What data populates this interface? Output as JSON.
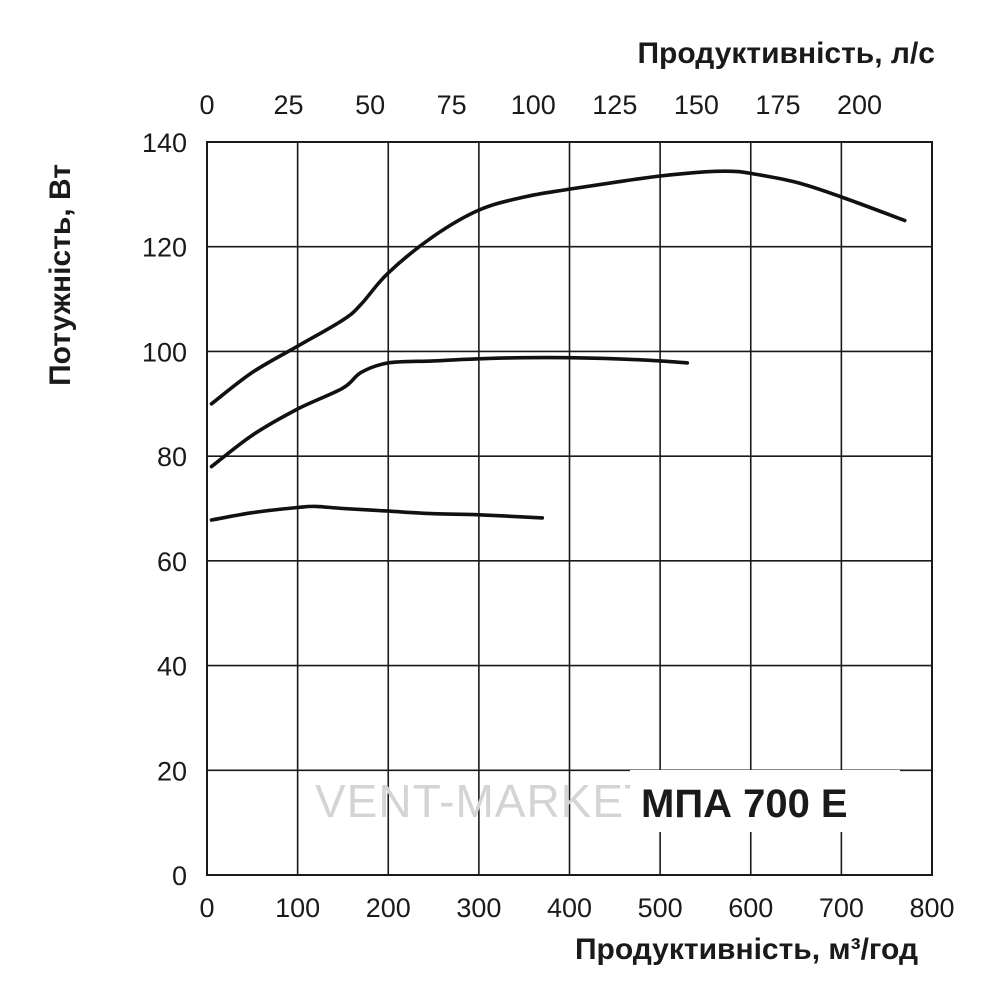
{
  "chart_data": {
    "type": "line",
    "title": "",
    "ylabel": "Потужність, Вт",
    "xlabel_bottom": "Продуктивність, м³/год",
    "xlabel_top": "Продуктивність, л/с",
    "xlim": [
      0,
      800
    ],
    "ylim": [
      0,
      140
    ],
    "x_ticks": [
      0,
      100,
      200,
      300,
      400,
      500,
      600,
      700,
      800
    ],
    "y_ticks": [
      0,
      20,
      40,
      60,
      80,
      100,
      120,
      140
    ],
    "top_ticks": [
      0,
      25,
      50,
      75,
      100,
      125,
      150,
      175,
      200
    ],
    "grid": true,
    "model_label": "МПА 700 Е",
    "watermark": "VENT-MARKET",
    "series": [
      {
        "x": [
          5,
          50,
          100,
          150,
          170,
          200,
          250,
          300,
          350,
          400,
          450,
          500,
          550,
          580,
          600,
          650,
          700,
          770
        ],
        "y": [
          90,
          96,
          101,
          106,
          109,
          115,
          122,
          127,
          129.5,
          131,
          132.3,
          133.5,
          134.3,
          134.4,
          134,
          132.3,
          129.5,
          125
        ]
      },
      {
        "x": [
          5,
          50,
          100,
          150,
          170,
          200,
          250,
          300,
          350,
          400,
          450,
          500,
          530
        ],
        "y": [
          78,
          84,
          89,
          93,
          96,
          97.8,
          98.2,
          98.6,
          98.8,
          98.8,
          98.6,
          98.2,
          97.8
        ]
      },
      {
        "x": [
          5,
          50,
          100,
          120,
          150,
          200,
          250,
          300,
          370
        ],
        "y": [
          67.8,
          69.2,
          70.2,
          70.4,
          70,
          69.5,
          69,
          68.8,
          68.2
        ]
      }
    ]
  }
}
